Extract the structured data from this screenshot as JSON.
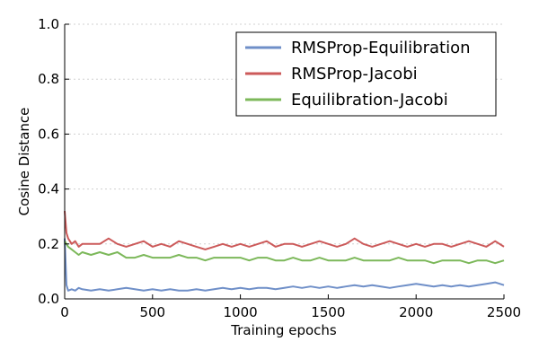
{
  "chart_data": {
    "type": "line",
    "xlabel": "Training epochs",
    "ylabel": "Cosine Distance",
    "xlim": [
      0,
      2500
    ],
    "ylim": [
      0.0,
      1.0
    ],
    "xticks": [
      "0",
      "500",
      "1000",
      "1500",
      "2000",
      "2500"
    ],
    "yticks": [
      "0.0",
      "0.2",
      "0.4",
      "0.6",
      "0.8",
      "1.0"
    ],
    "grid": "horizontal dotted",
    "legend_position": "top-right",
    "series": [
      {
        "name": "RMSProp-Equilibration",
        "color": "#6f8fc8",
        "x": [
          0,
          10,
          20,
          40,
          60,
          80,
          100,
          150,
          200,
          250,
          300,
          350,
          400,
          450,
          500,
          550,
          600,
          650,
          700,
          750,
          800,
          850,
          900,
          950,
          1000,
          1050,
          1100,
          1150,
          1200,
          1250,
          1300,
          1350,
          1400,
          1450,
          1500,
          1550,
          1600,
          1650,
          1700,
          1750,
          1800,
          1850,
          1900,
          1950,
          2000,
          2050,
          2100,
          2150,
          2200,
          2250,
          2300,
          2350,
          2400,
          2450,
          2500
        ],
        "y": [
          0.22,
          0.05,
          0.03,
          0.035,
          0.03,
          0.04,
          0.035,
          0.03,
          0.035,
          0.03,
          0.035,
          0.04,
          0.035,
          0.03,
          0.035,
          0.03,
          0.035,
          0.03,
          0.03,
          0.035,
          0.03,
          0.035,
          0.04,
          0.035,
          0.04,
          0.035,
          0.04,
          0.04,
          0.035,
          0.04,
          0.045,
          0.04,
          0.045,
          0.04,
          0.045,
          0.04,
          0.045,
          0.05,
          0.045,
          0.05,
          0.045,
          0.04,
          0.045,
          0.05,
          0.055,
          0.05,
          0.045,
          0.05,
          0.045,
          0.05,
          0.045,
          0.05,
          0.055,
          0.06,
          0.05
        ]
      },
      {
        "name": "RMSProp-Jacobi",
        "color": "#cc5a5a",
        "x": [
          0,
          10,
          20,
          40,
          60,
          80,
          100,
          150,
          200,
          250,
          300,
          350,
          400,
          450,
          500,
          550,
          600,
          650,
          700,
          750,
          800,
          850,
          900,
          950,
          1000,
          1050,
          1100,
          1150,
          1200,
          1250,
          1300,
          1350,
          1400,
          1450,
          1500,
          1550,
          1600,
          1650,
          1700,
          1750,
          1800,
          1850,
          1900,
          1950,
          2000,
          2050,
          2100,
          2150,
          2200,
          2250,
          2300,
          2350,
          2400,
          2450,
          2500
        ],
        "y": [
          0.32,
          0.24,
          0.22,
          0.2,
          0.21,
          0.19,
          0.2,
          0.2,
          0.2,
          0.22,
          0.2,
          0.19,
          0.2,
          0.21,
          0.19,
          0.2,
          0.19,
          0.21,
          0.2,
          0.19,
          0.18,
          0.19,
          0.2,
          0.19,
          0.2,
          0.19,
          0.2,
          0.21,
          0.19,
          0.2,
          0.2,
          0.19,
          0.2,
          0.21,
          0.2,
          0.19,
          0.2,
          0.22,
          0.2,
          0.19,
          0.2,
          0.21,
          0.2,
          0.19,
          0.2,
          0.19,
          0.2,
          0.2,
          0.19,
          0.2,
          0.21,
          0.2,
          0.19,
          0.21,
          0.19
        ]
      },
      {
        "name": "Equilibration-Jacobi",
        "color": "#7cb85a",
        "x": [
          0,
          10,
          20,
          40,
          60,
          80,
          100,
          150,
          200,
          250,
          300,
          350,
          400,
          450,
          500,
          550,
          600,
          650,
          700,
          750,
          800,
          850,
          900,
          950,
          1000,
          1050,
          1100,
          1150,
          1200,
          1250,
          1300,
          1350,
          1400,
          1450,
          1500,
          1550,
          1600,
          1650,
          1700,
          1750,
          1800,
          1850,
          1900,
          1950,
          2000,
          2050,
          2100,
          2150,
          2200,
          2250,
          2300,
          2350,
          2400,
          2450,
          2500
        ],
        "y": [
          0.21,
          0.2,
          0.19,
          0.18,
          0.17,
          0.16,
          0.17,
          0.16,
          0.17,
          0.16,
          0.17,
          0.15,
          0.15,
          0.16,
          0.15,
          0.15,
          0.15,
          0.16,
          0.15,
          0.15,
          0.14,
          0.15,
          0.15,
          0.15,
          0.15,
          0.14,
          0.15,
          0.15,
          0.14,
          0.14,
          0.15,
          0.14,
          0.14,
          0.15,
          0.14,
          0.14,
          0.14,
          0.15,
          0.14,
          0.14,
          0.14,
          0.14,
          0.15,
          0.14,
          0.14,
          0.14,
          0.13,
          0.14,
          0.14,
          0.14,
          0.13,
          0.14,
          0.14,
          0.13,
          0.14
        ]
      }
    ]
  }
}
